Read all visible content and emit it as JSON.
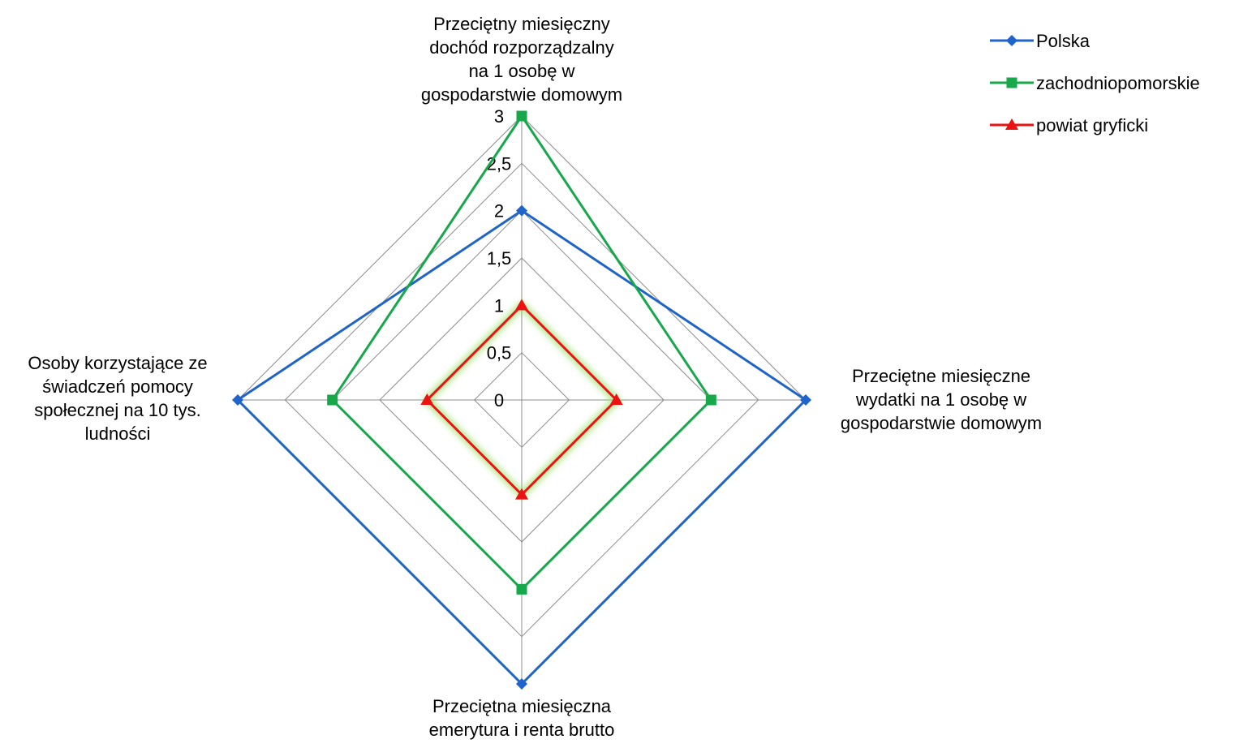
{
  "chart_data": {
    "type": "radar",
    "title": "",
    "axes": [
      {
        "label": [
          "Przeciętny miesięczny",
          "dochód rozporządzalny",
          "na 1 osobę w",
          "gospodarstwie domowym"
        ]
      },
      {
        "label": [
          "Przeciętne miesięczne",
          "wydatki na 1 osobę w",
          "gospodarstwie domowym"
        ]
      },
      {
        "label": [
          "Przeciętna miesięczna",
          "emerytura i renta brutto"
        ]
      },
      {
        "label": [
          "Osoby korzystające ze",
          "świadczeń pomocy",
          "społecznej na 10 tys.",
          "ludności"
        ]
      }
    ],
    "scale": {
      "min": 0,
      "max": 3,
      "step": 0.5
    },
    "tick_labels": [
      "0",
      "0,5",
      "1",
      "1,5",
      "2",
      "2,5",
      "3"
    ],
    "series": [
      {
        "name": "Polska",
        "values": [
          2,
          3,
          3,
          3
        ],
        "color": "#1f64c8",
        "marker": "diamond"
      },
      {
        "name": "zachodniopomorskie",
        "values": [
          3,
          2,
          2,
          2
        ],
        "color": "#16a84a",
        "marker": "square"
      },
      {
        "name": "powiat gryficki",
        "values": [
          1,
          1,
          1,
          1
        ],
        "color": "#ee1111",
        "marker": "triangle"
      }
    ],
    "legend_position": "top-right",
    "grid": true
  }
}
